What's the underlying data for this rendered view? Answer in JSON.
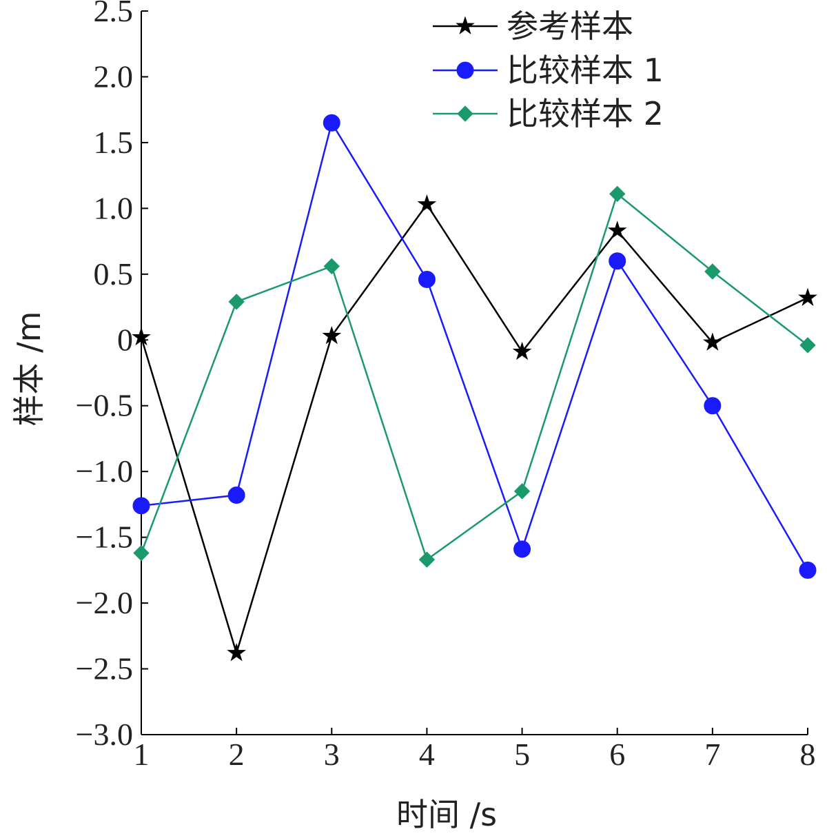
{
  "chart_data": {
    "type": "line",
    "title": "",
    "xlabel": "时间 /s",
    "ylabel": "样本 /m",
    "x": [
      1,
      2,
      3,
      4,
      5,
      6,
      7,
      8
    ],
    "xlim": [
      1,
      8
    ],
    "ylim": [
      -3.0,
      2.5
    ],
    "xticks": [
      "1",
      "2",
      "3",
      "4",
      "5",
      "6",
      "7",
      "8"
    ],
    "yticks": [
      "2.5",
      "2.0",
      "1.5",
      "1.0",
      "0.5",
      "0",
      "−0.5",
      "−1.0",
      "−1.5",
      "−2.0",
      "−2.5",
      "−3.0"
    ],
    "ytick_values": [
      2.5,
      2.0,
      1.5,
      1.0,
      0.5,
      0,
      -0.5,
      -1.0,
      -1.5,
      -2.0,
      -2.5,
      -3.0
    ],
    "grid": false,
    "legend_position": "top-right",
    "series": [
      {
        "name": "参考样本",
        "color": "#000000",
        "marker": "star",
        "values": [
          0.02,
          -2.38,
          0.03,
          1.03,
          -0.09,
          0.83,
          -0.02,
          0.32
        ]
      },
      {
        "name": "比较样本 1",
        "color": "#1a1aff",
        "marker": "circle",
        "values": [
          -1.26,
          -1.18,
          1.65,
          0.46,
          -1.59,
          0.6,
          -0.5,
          -1.75
        ]
      },
      {
        "name": "比较样本 2",
        "color": "#1a9a6a",
        "marker": "diamond",
        "values": [
          -1.62,
          0.29,
          0.56,
          -1.67,
          -1.15,
          1.11,
          0.52,
          -0.04
        ]
      }
    ]
  }
}
